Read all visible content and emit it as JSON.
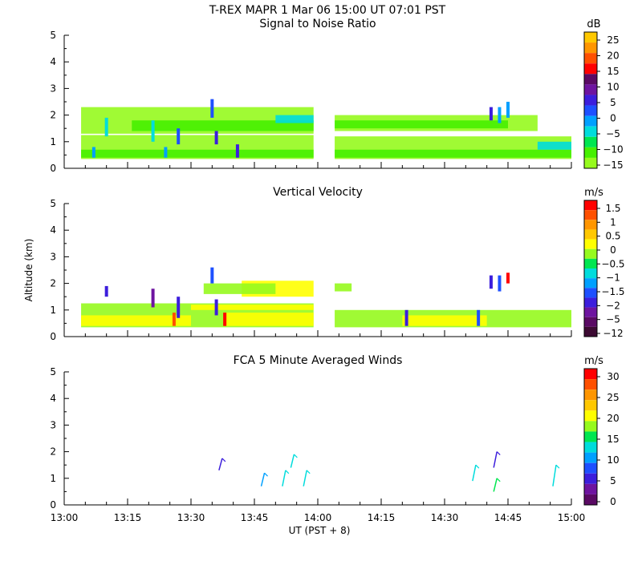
{
  "header": {
    "title": "T-REX   MAPR   1 Mar 06   15:00 UT   07:01   PST"
  },
  "chart_data": [
    {
      "type": "heatmap",
      "title": "Signal to Noise Ratio",
      "ylabel": "",
      "xlabel": "",
      "x_ticks": [
        "13:00",
        "13:15",
        "13:30",
        "13:45",
        "14:00",
        "14:15",
        "14:30",
        "14:45",
        "15:00"
      ],
      "y_ticks": [
        "0",
        "1",
        "2",
        "3",
        "4",
        "5"
      ],
      "ylim": [
        0,
        5
      ],
      "colorbar": {
        "unit": "dB",
        "labels": [
          "25",
          "20",
          "15",
          "10",
          "5",
          "0",
          "−5",
          "−10",
          "−15"
        ],
        "colors": [
          "#ffc800",
          "#ff9600",
          "#ff5000",
          "#ff0000",
          "#5a0a64",
          "#6e14a0",
          "#3c1edc",
          "#1e50ff",
          "#00a0ff",
          "#00dcdc",
          "#00e650",
          "#46f000",
          "#96fa1e"
        ]
      },
      "gaps": [
        "13:59–14:04"
      ],
      "blocks": [
        {
          "x0": "13:04",
          "x1": "13:59",
          "y0": 0.35,
          "y1": 1.25,
          "color": "#96fa1e"
        },
        {
          "x0": "14:04",
          "x1": "15:00",
          "y0": 0.35,
          "y1": 1.2,
          "color": "#96fa1e"
        },
        {
          "x0": "13:04",
          "x1": "13:59",
          "y0": 1.3,
          "y1": 2.3,
          "color": "#96fa1e"
        },
        {
          "x0": "14:04",
          "x1": "14:52",
          "y0": 1.4,
          "y1": 2.0,
          "color": "#96fa1e"
        },
        {
          "x0": "13:16",
          "x1": "13:59",
          "y0": 1.4,
          "y1": 1.8,
          "color": "#46f000"
        },
        {
          "x0": "14:04",
          "x1": "14:45",
          "y0": 1.5,
          "y1": 1.8,
          "color": "#46f000"
        },
        {
          "x0": "13:04",
          "x1": "13:59",
          "y0": 0.4,
          "y1": 0.7,
          "color": "#46f000"
        },
        {
          "x0": "14:04",
          "x1": "15:00",
          "y0": 0.4,
          "y1": 0.7,
          "color": "#46f000"
        },
        {
          "x0": "13:50",
          "x1": "13:59",
          "y0": 1.7,
          "y1": 2.0,
          "color": "#00dcdc"
        },
        {
          "x0": "14:52",
          "x1": "15:00",
          "y0": 0.7,
          "y1": 1.0,
          "color": "#00dcdc"
        }
      ],
      "features": [
        {
          "x": "13:10",
          "y0": 1.2,
          "y1": 1.9,
          "color": "#00dcdc"
        },
        {
          "x": "13:21",
          "y0": 1.0,
          "y1": 1.8,
          "color": "#00dcdc"
        },
        {
          "x": "13:27",
          "y0": 0.9,
          "y1": 1.5,
          "color": "#1e50ff"
        },
        {
          "x": "13:35",
          "y0": 1.9,
          "y1": 2.6,
          "color": "#1e50ff"
        },
        {
          "x": "13:36",
          "y0": 0.9,
          "y1": 1.4,
          "color": "#3c1edc"
        },
        {
          "x": "13:41",
          "y0": 0.4,
          "y1": 0.9,
          "color": "#3c1edc"
        },
        {
          "x": "14:41",
          "y0": 1.8,
          "y1": 2.3,
          "color": "#3c1edc"
        },
        {
          "x": "14:43",
          "y0": 1.7,
          "y1": 2.3,
          "color": "#00a0ff"
        },
        {
          "x": "14:45",
          "y0": 1.9,
          "y1": 2.5,
          "color": "#00a0ff"
        },
        {
          "x": "13:07",
          "y0": 0.4,
          "y1": 0.8,
          "color": "#00a0ff"
        },
        {
          "x": "13:24",
          "y0": 0.4,
          "y1": 0.8,
          "color": "#00a0ff"
        }
      ]
    },
    {
      "type": "heatmap",
      "title": "Vertical Velocity",
      "ylabel": "Altitude (km)",
      "xlabel": "",
      "x_ticks": [
        "13:00",
        "13:15",
        "13:30",
        "13:45",
        "14:00",
        "14:15",
        "14:30",
        "14:45",
        "15:00"
      ],
      "y_ticks": [
        "0",
        "1",
        "2",
        "3",
        "4",
        "5"
      ],
      "ylim": [
        0,
        5
      ],
      "colorbar": {
        "unit": "m/s",
        "labels": [
          "1.5",
          "1",
          "0.5",
          "0",
          "−0.5",
          "−1",
          "−1.5",
          "−2",
          "−5",
          "−12"
        ],
        "colors": [
          "#ff0000",
          "#ff5000",
          "#ff9600",
          "#ffc800",
          "#ffff00",
          "#96fa1e",
          "#00e650",
          "#00dcdc",
          "#00a0ff",
          "#1e50ff",
          "#3c1edc",
          "#6e14a0",
          "#5a0a64",
          "#3c0a32"
        ]
      },
      "gaps": [
        "13:59–14:04"
      ],
      "blocks": [
        {
          "x0": "13:04",
          "x1": "13:59",
          "y0": 0.35,
          "y1": 1.25,
          "color": "#96fa1e"
        },
        {
          "x0": "14:04",
          "x1": "15:00",
          "y0": 0.35,
          "y1": 1.0,
          "color": "#96fa1e"
        },
        {
          "x0": "13:04",
          "x1": "13:30",
          "y0": 0.4,
          "y1": 0.8,
          "color": "#ffff00"
        },
        {
          "x0": "13:38",
          "x1": "13:59",
          "y0": 0.4,
          "y1": 0.9,
          "color": "#ffff00"
        },
        {
          "x0": "14:20",
          "x1": "14:40",
          "y0": 0.4,
          "y1": 0.8,
          "color": "#ffff00"
        },
        {
          "x0": "13:42",
          "x1": "13:59",
          "y0": 1.5,
          "y1": 2.1,
          "color": "#ffff00"
        },
        {
          "x0": "13:33",
          "x1": "13:50",
          "y0": 1.6,
          "y1": 2.0,
          "color": "#96fa1e"
        },
        {
          "x0": "14:04",
          "x1": "14:08",
          "y0": 1.7,
          "y1": 2.0,
          "color": "#96fa1e"
        },
        {
          "x0": "13:30",
          "x1": "13:59",
          "y0": 1.0,
          "y1": 1.2,
          "color": "#ffff00"
        }
      ],
      "features": [
        {
          "x": "13:10",
          "y0": 1.5,
          "y1": 1.9,
          "color": "#3c1edc"
        },
        {
          "x": "13:21",
          "y0": 1.1,
          "y1": 1.8,
          "color": "#6e14a0"
        },
        {
          "x": "13:27",
          "y0": 0.7,
          "y1": 1.5,
          "color": "#3c1edc"
        },
        {
          "x": "13:35",
          "y0": 2.0,
          "y1": 2.6,
          "color": "#1e50ff"
        },
        {
          "x": "13:36",
          "y0": 0.8,
          "y1": 1.4,
          "color": "#3c1edc"
        },
        {
          "x": "13:38",
          "y0": 0.4,
          "y1": 0.9,
          "color": "#ff0000"
        },
        {
          "x": "13:26",
          "y0": 0.4,
          "y1": 0.9,
          "color": "#ff5000"
        },
        {
          "x": "14:21",
          "y0": 0.4,
          "y1": 1.0,
          "color": "#3c1edc"
        },
        {
          "x": "14:41",
          "y0": 1.8,
          "y1": 2.3,
          "color": "#3c1edc"
        },
        {
          "x": "14:43",
          "y0": 1.7,
          "y1": 2.3,
          "color": "#1e50ff"
        },
        {
          "x": "14:45",
          "y0": 2.0,
          "y1": 2.4,
          "color": "#ff0000"
        },
        {
          "x": "14:38",
          "y0": 0.4,
          "y1": 1.0,
          "color": "#1e50ff"
        }
      ]
    },
    {
      "type": "scatter",
      "title": "FCA 5 Minute Averaged Winds",
      "ylabel": "",
      "xlabel": "UT  (PST + 8)",
      "x_ticks": [
        "13:00",
        "13:15",
        "13:30",
        "13:45",
        "14:00",
        "14:15",
        "14:30",
        "14:45",
        "15:00"
      ],
      "y_ticks": [
        "0",
        "1",
        "2",
        "3",
        "4",
        "5"
      ],
      "ylim": [
        0,
        5
      ],
      "colorbar": {
        "unit": "m/s",
        "labels": [
          "30",
          "25",
          "20",
          "15",
          "10",
          "5",
          "0"
        ],
        "colors": [
          "#ff0000",
          "#ff5000",
          "#ff9600",
          "#ffc800",
          "#ffff00",
          "#96fa1e",
          "#00e650",
          "#00dcdc",
          "#00a0ff",
          "#1e50ff",
          "#3c1edc",
          "#6e14a0",
          "#5a0a64"
        ]
      },
      "barbs": [
        {
          "x": "13:37",
          "y0": 1.3,
          "y1": 1.75,
          "color": "#3c1edc"
        },
        {
          "x": "13:47",
          "y0": 0.7,
          "y1": 1.2,
          "color": "#00a0ff"
        },
        {
          "x": "13:52",
          "y0": 0.7,
          "y1": 1.3,
          "color": "#00dcdc"
        },
        {
          "x": "13:54",
          "y0": 1.4,
          "y1": 1.9,
          "color": "#00dcdc"
        },
        {
          "x": "13:57",
          "y0": 0.7,
          "y1": 1.3,
          "color": "#00dcdc"
        },
        {
          "x": "14:37",
          "y0": 0.9,
          "y1": 1.5,
          "color": "#00dcdc"
        },
        {
          "x": "14:42",
          "y0": 1.4,
          "y1": 2.0,
          "color": "#3c1edc"
        },
        {
          "x": "14:42",
          "y0": 0.5,
          "y1": 1.0,
          "color": "#00e650"
        },
        {
          "x": "14:56",
          "y0": 0.7,
          "y1": 1.5,
          "color": "#00dcdc"
        }
      ]
    }
  ]
}
